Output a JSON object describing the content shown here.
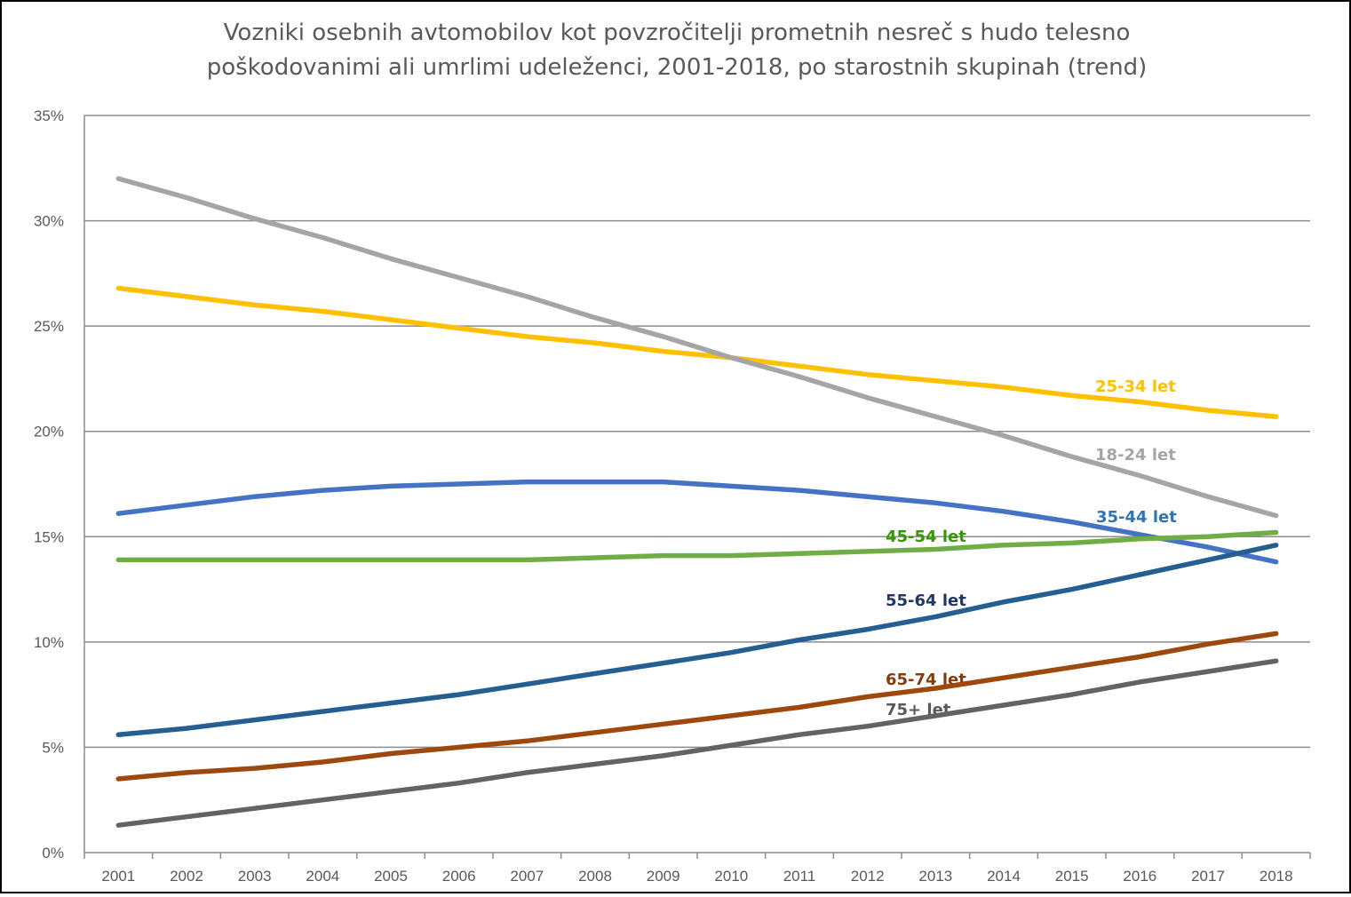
{
  "chart_data": {
    "type": "line",
    "title": [
      "Vozniki osebnih avtomobilov kot povzročitelji prometnih nesreč s hudo telesno",
      "poškodovanimi ali umrlimi udeleženci, 2001-2018, po starostnih skupinah (trend)"
    ],
    "xlabel": "",
    "ylabel": "",
    "ylim": [
      0,
      35
    ],
    "y_ticks": [
      "0%",
      "5%",
      "10%",
      "15%",
      "20%",
      "25%",
      "30%",
      "35%"
    ],
    "grid": true,
    "categories": [
      "2001",
      "2002",
      "2003",
      "2004",
      "2005",
      "2006",
      "2007",
      "2008",
      "2009",
      "2010",
      "2011",
      "2012",
      "2013",
      "2014",
      "2015",
      "2016",
      "2017",
      "2018"
    ],
    "series": [
      {
        "name": "25-34 let",
        "color": "#FFC000",
        "label_color": "#FFC000",
        "values": [
          26.8,
          26.4,
          26.0,
          25.7,
          25.3,
          24.9,
          24.5,
          24.2,
          23.8,
          23.5,
          23.1,
          22.7,
          22.4,
          22.1,
          21.7,
          21.4,
          21.0,
          20.7
        ]
      },
      {
        "name": "18-24 let",
        "color": "#A5A5A5",
        "label_color": "#A5A5A5",
        "values": [
          32.0,
          31.1,
          30.1,
          29.2,
          28.2,
          27.3,
          26.4,
          25.4,
          24.5,
          23.5,
          22.6,
          21.6,
          20.7,
          19.8,
          18.8,
          17.9,
          16.9,
          16.0
        ]
      },
      {
        "name": "35-44 let",
        "color": "#4472C4",
        "label_color": "#2E75B6",
        "values": [
          16.1,
          16.5,
          16.9,
          17.2,
          17.4,
          17.5,
          17.6,
          17.6,
          17.6,
          17.4,
          17.2,
          16.9,
          16.6,
          16.2,
          15.7,
          15.1,
          14.5,
          13.8
        ]
      },
      {
        "name": "45-54 let",
        "color": "#70AD47",
        "label_color": "#339900",
        "values": [
          13.9,
          13.9,
          13.9,
          13.9,
          13.9,
          13.9,
          13.9,
          14.0,
          14.1,
          14.1,
          14.2,
          14.3,
          14.4,
          14.6,
          14.7,
          14.9,
          15.0,
          15.2
        ]
      },
      {
        "name": "55-64 let",
        "color": "#255E91",
        "label_color": "#1F3864",
        "values": [
          5.6,
          5.9,
          6.3,
          6.7,
          7.1,
          7.5,
          8.0,
          8.5,
          9.0,
          9.5,
          10.1,
          10.6,
          11.2,
          11.9,
          12.5,
          13.2,
          13.9,
          14.6
        ]
      },
      {
        "name": "65-74 let",
        "color": "#9E480E",
        "label_color": "#843C0C",
        "values": [
          3.5,
          3.8,
          4.0,
          4.3,
          4.7,
          5.0,
          5.3,
          5.7,
          6.1,
          6.5,
          6.9,
          7.4,
          7.8,
          8.3,
          8.8,
          9.3,
          9.9,
          10.4
        ]
      },
      {
        "name": "75+ let",
        "color": "#636363",
        "label_color": "#595959",
        "values": [
          1.3,
          1.7,
          2.1,
          2.5,
          2.9,
          3.3,
          3.8,
          4.2,
          4.6,
          5.1,
          5.6,
          6.0,
          6.5,
          7.0,
          7.5,
          8.1,
          8.6,
          9.1
        ]
      }
    ]
  }
}
